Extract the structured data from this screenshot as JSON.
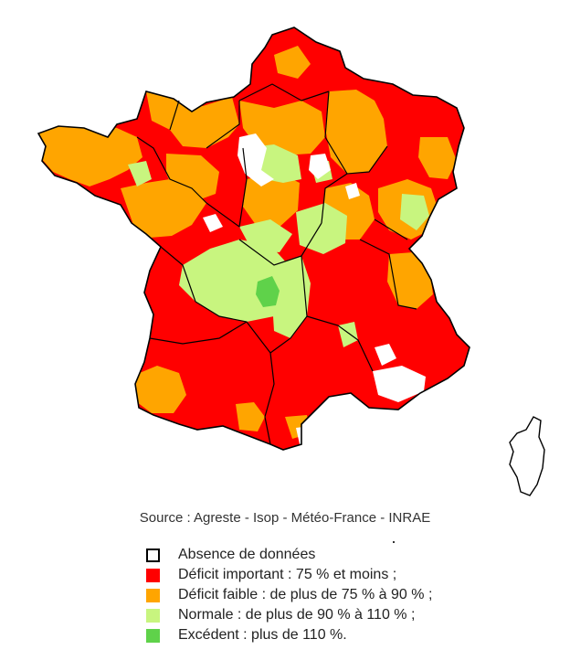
{
  "source_text": "Source : Agreste - Isop - Météo-France - INRAE",
  "colors": {
    "absence": "#ffffff",
    "deficit_important": "#ff0000",
    "deficit_faible": "#ffa500",
    "normale": "#c8f57f",
    "excedent": "#5fd24a",
    "outline": "#000000"
  },
  "legend": [
    {
      "key": "absence",
      "label": "Absence de données",
      "color": "#ffffff"
    },
    {
      "key": "deficit_important",
      "label": "Déficit important : 75 % et moins ;",
      "color": "#ff0000"
    },
    {
      "key": "deficit_faible",
      "label": "Déficit faible : de plus de 75 % à 90 % ;",
      "color": "#ffa500"
    },
    {
      "key": "normale",
      "label": "Normale : de plus de 90 % à 110 % ;",
      "color": "#c8f57f"
    },
    {
      "key": "excedent",
      "label": "Excédent : plus de 110 %.",
      "color": "#5fd24a"
    }
  ]
}
